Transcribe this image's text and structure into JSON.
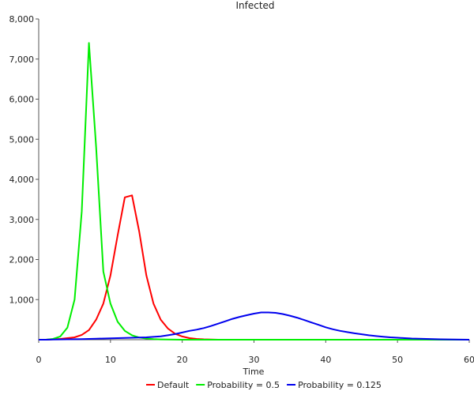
{
  "chart_data": {
    "type": "line",
    "title": "Infected",
    "xlabel": "Time",
    "ylabel": "",
    "xlim": [
      0,
      60
    ],
    "ylim": [
      0,
      8000
    ],
    "x_ticks": [
      "0",
      "10",
      "20",
      "30",
      "40",
      "50",
      "60"
    ],
    "y_ticks": [
      "1,000",
      "2,000",
      "3,000",
      "4,000",
      "5,000",
      "6,000",
      "7,000",
      "8,000"
    ],
    "grid": false,
    "legend_position": "bottom-center",
    "x": [
      0,
      1,
      2,
      3,
      4,
      5,
      6,
      7,
      8,
      9,
      10,
      11,
      12,
      13,
      14,
      15,
      16,
      17,
      18,
      19,
      20,
      21,
      22,
      23,
      24,
      25,
      26,
      27,
      28,
      29,
      30,
      31,
      32,
      33,
      34,
      35,
      36,
      37,
      38,
      39,
      40,
      41,
      42,
      43,
      44,
      45,
      46,
      47,
      48,
      49,
      50,
      51,
      52,
      53,
      54,
      55,
      56,
      57,
      58,
      59,
      60
    ],
    "series": [
      {
        "name": "Default",
        "color": "#ff0000",
        "values": [
          0,
          0,
          10,
          20,
          40,
          60,
          120,
          240,
          500,
          900,
          1600,
          2600,
          3550,
          3600,
          2700,
          1600,
          900,
          500,
          280,
          150,
          80,
          40,
          20,
          10,
          5,
          0,
          0,
          0,
          0,
          0,
          0,
          0,
          0,
          0,
          0,
          0,
          0,
          0,
          0,
          0,
          0,
          0,
          0,
          0,
          0,
          0,
          0,
          0,
          0,
          0,
          0,
          0,
          0,
          0,
          0,
          0,
          0,
          0,
          0,
          0,
          0
        ]
      },
      {
        "name": "Probability = 0.5",
        "color": "#00ee00",
        "values": [
          0,
          0,
          20,
          80,
          300,
          1000,
          3200,
          7400,
          4800,
          1700,
          900,
          450,
          220,
          110,
          55,
          30,
          15,
          8,
          4,
          2,
          0,
          0,
          0,
          0,
          0,
          0,
          0,
          0,
          0,
          0,
          0,
          0,
          0,
          0,
          0,
          0,
          0,
          0,
          0,
          0,
          0,
          0,
          0,
          0,
          0,
          0,
          0,
          0,
          0,
          0,
          0,
          0,
          0,
          0,
          0,
          0,
          0,
          0,
          0,
          0,
          0
        ]
      },
      {
        "name": "Probability = 0.125",
        "color": "#0000ee",
        "values": [
          0,
          0,
          5,
          8,
          10,
          12,
          15,
          20,
          25,
          30,
          35,
          40,
          45,
          50,
          55,
          60,
          70,
          85,
          110,
          140,
          180,
          220,
          250,
          290,
          340,
          400,
          460,
          520,
          570,
          610,
          650,
          680,
          680,
          670,
          640,
          600,
          550,
          490,
          430,
          370,
          310,
          260,
          220,
          190,
          160,
          135,
          110,
          90,
          75,
          60,
          50,
          40,
          30,
          25,
          20,
          15,
          10,
          8,
          5,
          2,
          0
        ]
      }
    ]
  }
}
